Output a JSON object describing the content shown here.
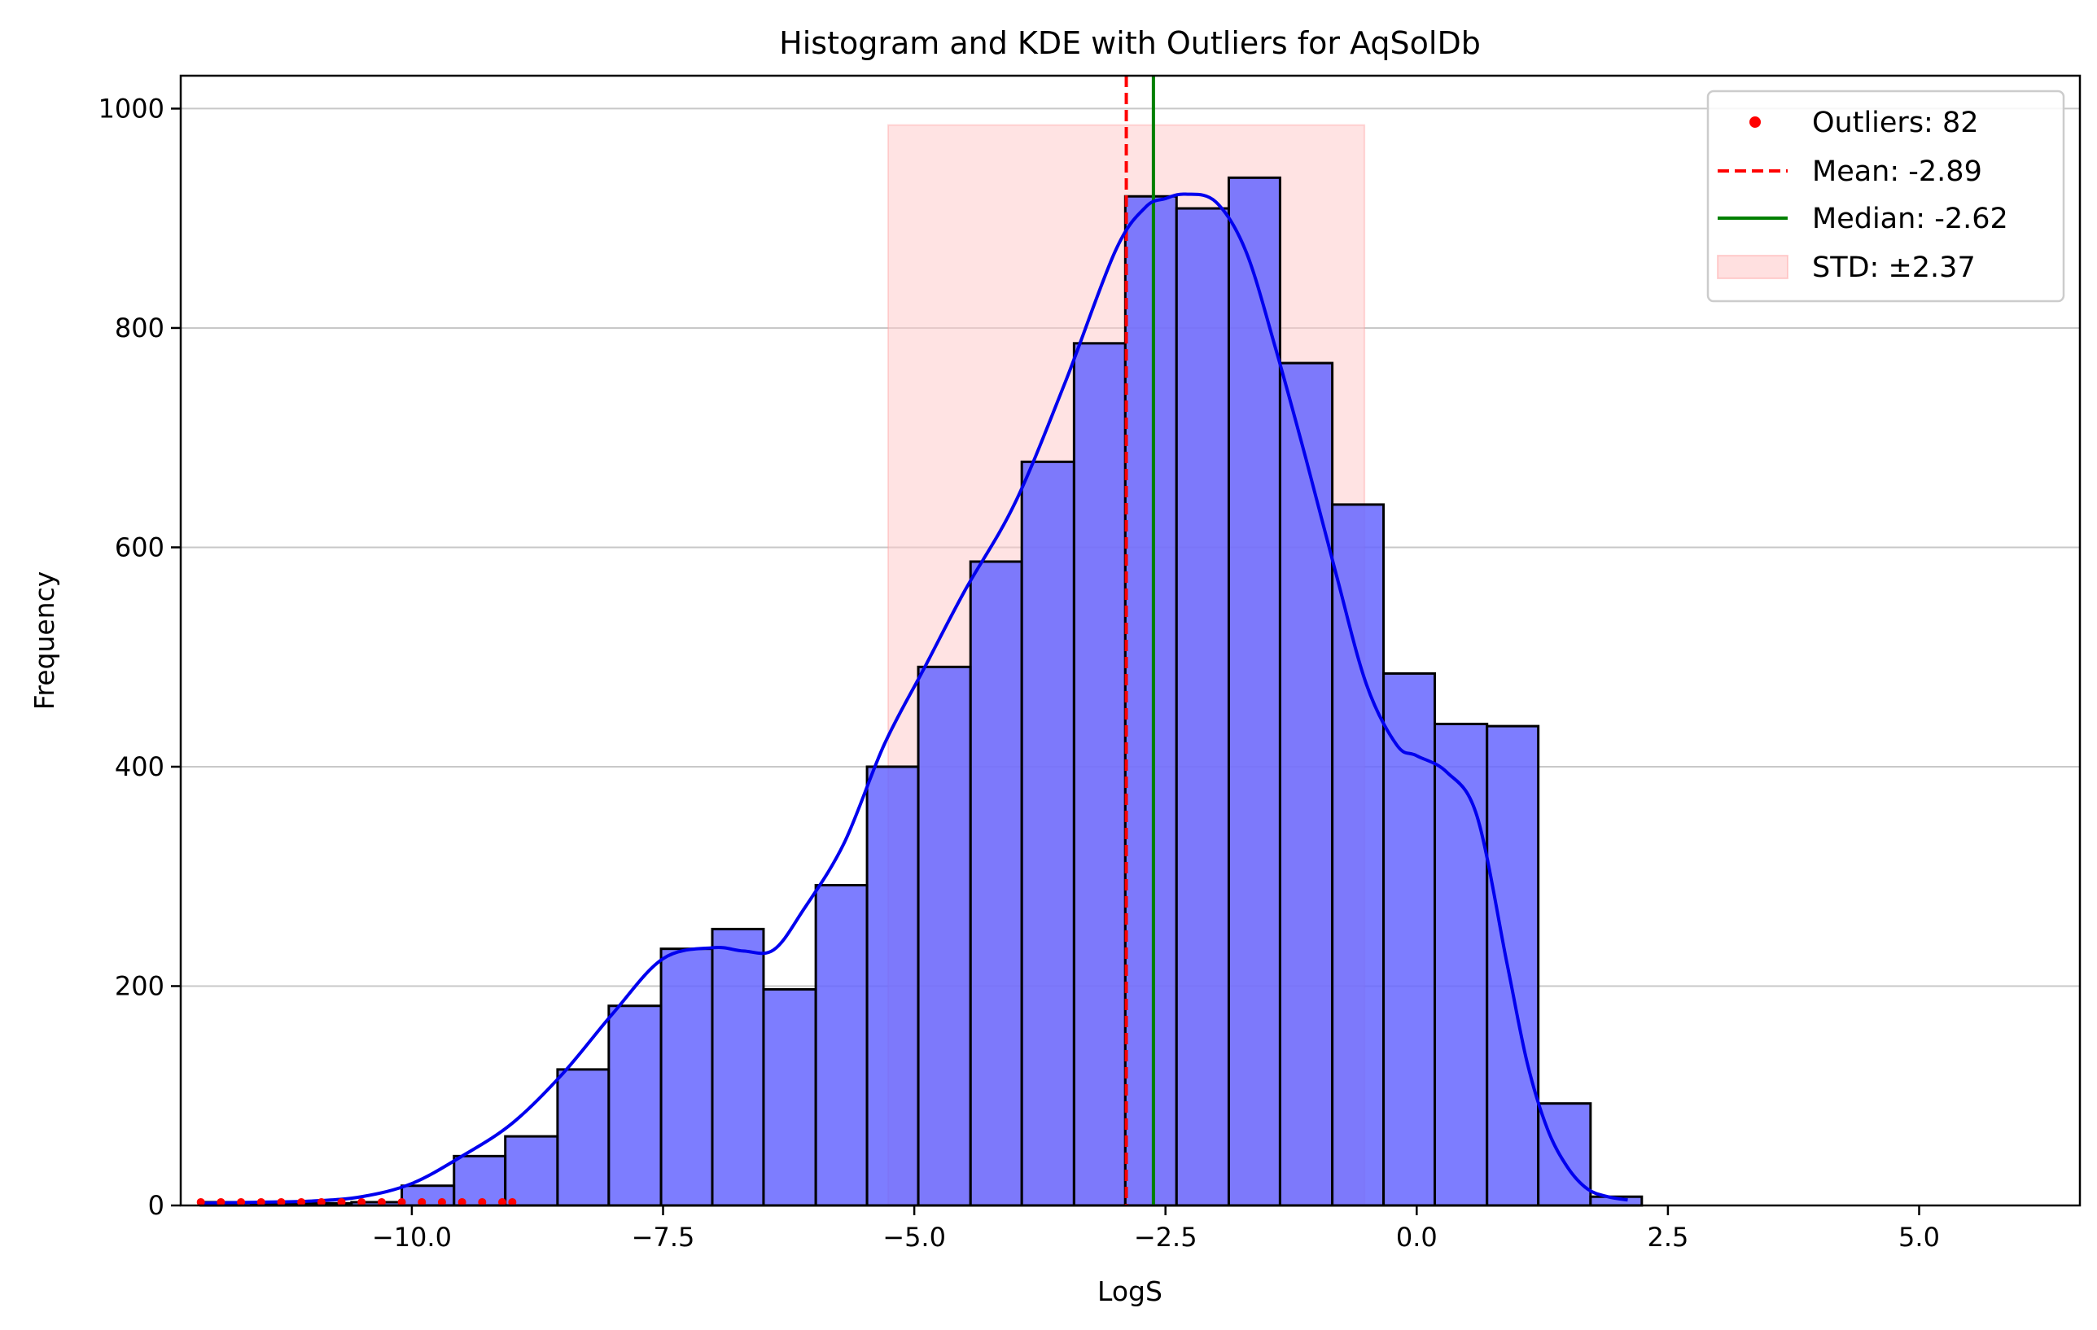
{
  "chart_data": {
    "type": "bar",
    "title": "Histogram and KDE with Outliers for AqSolDb",
    "xlabel": "LogS",
    "ylabel": "Frequency",
    "xlim": [
      -12.3,
      6.6
    ],
    "ylim": [
      0,
      1030
    ],
    "x_ticks": [
      -10.0,
      -7.5,
      -5.0,
      -2.5,
      0.0,
      2.5,
      5.0
    ],
    "x_tick_labels": [
      "−10.0",
      "−7.5",
      "−5.0",
      "−2.5",
      "0.0",
      "2.5",
      "5.0"
    ],
    "y_ticks": [
      0,
      200,
      400,
      600,
      800,
      1000
    ],
    "y_tick_labels": [
      "0",
      "200",
      "400",
      "600",
      "800",
      "1000"
    ],
    "grid": "horizontal",
    "legend_position": "top-right",
    "colors": {
      "bars": "#6666ff",
      "bar_edge": "#000000",
      "kde": "#0000ee",
      "outliers": "#ff0000",
      "mean": "#ff0000",
      "median": "#008000",
      "std_band": "#ffcccc",
      "grid": "#c8c8c8"
    },
    "bin_edges": [
      -12.1,
      -11.6,
      -11.1,
      -10.6,
      -10.1,
      -9.58,
      -9.07,
      -8.55,
      -8.04,
      -7.52,
      -7.01,
      -6.5,
      -5.98,
      -5.47,
      -4.96,
      -4.44,
      -3.93,
      -3.41,
      -2.9,
      -2.39,
      -1.87,
      -1.36,
      -0.84,
      -0.33,
      0.18,
      0.7,
      1.21,
      1.73,
      2.24
    ],
    "counts": [
      3,
      2,
      2,
      3,
      18,
      45,
      63,
      124,
      182,
      234,
      252,
      197,
      292,
      400,
      491,
      587,
      678,
      786,
      920,
      909,
      937,
      768,
      639,
      485,
      439,
      437,
      93,
      8
    ],
    "kde": {
      "x": [
        -12.1,
        -11.5,
        -11.0,
        -10.5,
        -10.0,
        -9.5,
        -9.0,
        -8.5,
        -8.0,
        -7.5,
        -7.0,
        -6.7,
        -6.4,
        -6.1,
        -5.7,
        -5.3,
        -4.9,
        -4.5,
        -4.0,
        -3.5,
        -3.0,
        -2.7,
        -2.5,
        -2.3,
        -2.0,
        -1.7,
        -1.4,
        -1.1,
        -0.8,
        -0.5,
        -0.2,
        0.0,
        0.3,
        0.6,
        0.9,
        1.1,
        1.3,
        1.5,
        1.7,
        1.9,
        2.1
      ],
      "y": [
        2,
        3,
        4,
        8,
        20,
        45,
        75,
        120,
        175,
        225,
        235,
        232,
        233,
        270,
        330,
        420,
        490,
        560,
        640,
        750,
        870,
        910,
        918,
        922,
        915,
        870,
        780,
        680,
        575,
        475,
        420,
        410,
        395,
        355,
        220,
        130,
        70,
        35,
        15,
        8,
        5
      ]
    },
    "outliers": {
      "count": 82,
      "x": [
        -12.1,
        -11.9,
        -11.7,
        -11.5,
        -11.3,
        -11.1,
        -10.9,
        -10.7,
        -10.5,
        -10.3,
        -10.1,
        -9.9,
        -9.7,
        -9.5,
        -9.3,
        -9.1,
        -9.0
      ],
      "y": [
        3,
        3,
        3,
        3,
        3,
        3,
        3,
        3,
        3,
        3,
        3,
        3,
        3,
        3,
        3,
        3,
        3
      ]
    },
    "mean": -2.89,
    "median": -2.62,
    "std": 2.37,
    "std_band_top": 985,
    "legend": [
      {
        "label": "Outliers: 82",
        "kind": "dot"
      },
      {
        "label": "Mean: -2.89",
        "kind": "dashed"
      },
      {
        "label": "Median: -2.62",
        "kind": "line"
      },
      {
        "label": "STD: ±2.37",
        "kind": "patch"
      }
    ]
  }
}
